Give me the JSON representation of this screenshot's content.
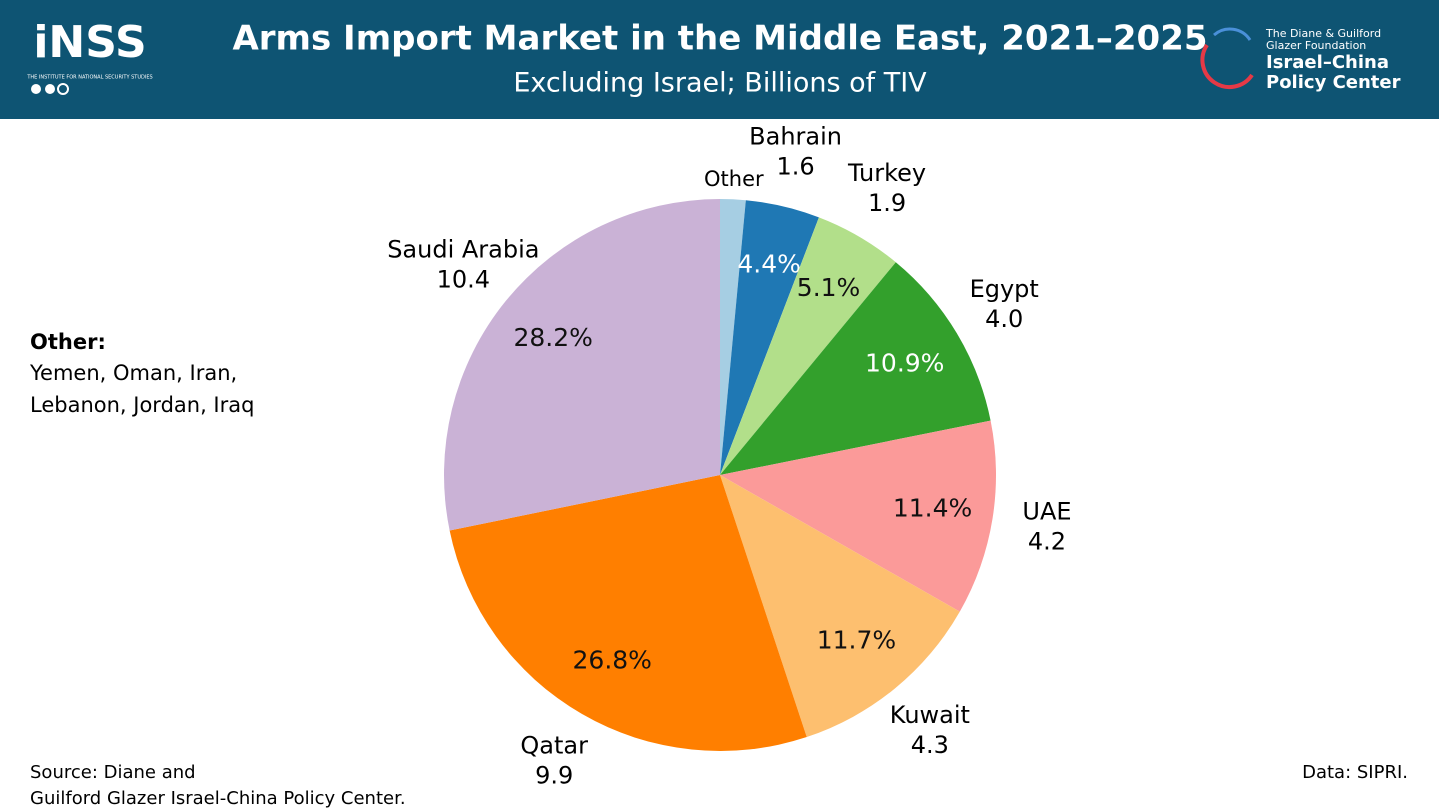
{
  "logos": {
    "left": "iNSS",
    "left_sub": "THE INSTITUTE FOR NATIONAL SECURITY STUDIES",
    "right_small": [
      "The Diane & Guilford",
      "Glazer Foundation"
    ],
    "right_big": [
      "Israel–China",
      "Policy Center"
    ]
  },
  "chart_data": {
    "type": "pie",
    "title": "Arms Import Market in the Middle East, 2021–2025",
    "subtitle": "Excluding Israel; Billions of TIV",
    "categories": [
      "Other",
      "Bahrain",
      "Turkey",
      "Egypt",
      "UAE",
      "Kuwait",
      "Qatar",
      "Saudi Arabia"
    ],
    "values": [
      0.55,
      1.6,
      1.9,
      4.0,
      4.2,
      4.3,
      9.9,
      10.4
    ],
    "value_labels": [
      null,
      "1.6",
      "1.9",
      "4.0",
      "4.2",
      "4.3",
      "9.9",
      "10.4"
    ],
    "percent_labels": [
      null,
      "4.4%",
      "5.1%",
      "10.9%",
      "11.4%",
      "11.7%",
      "26.8%",
      "28.2%"
    ],
    "colors": [
      "#a6cee3",
      "#1f78b4",
      "#b2df8a",
      "#33a02c",
      "#fb9a99",
      "#fdbf6f",
      "#ff7f00",
      "#cab2d6"
    ],
    "start_angle": "top",
    "direction": "clockwise",
    "notes": {
      "other_heading": "Other:",
      "other_list": [
        "Yemen, Oman, Iran,",
        "Lebanon, Jordan, Iraq"
      ],
      "source": [
        "Source: Diane and",
        "Guilford Glazer Israel-China Policy Center."
      ],
      "data_credit": "Data: SIPRI."
    }
  }
}
